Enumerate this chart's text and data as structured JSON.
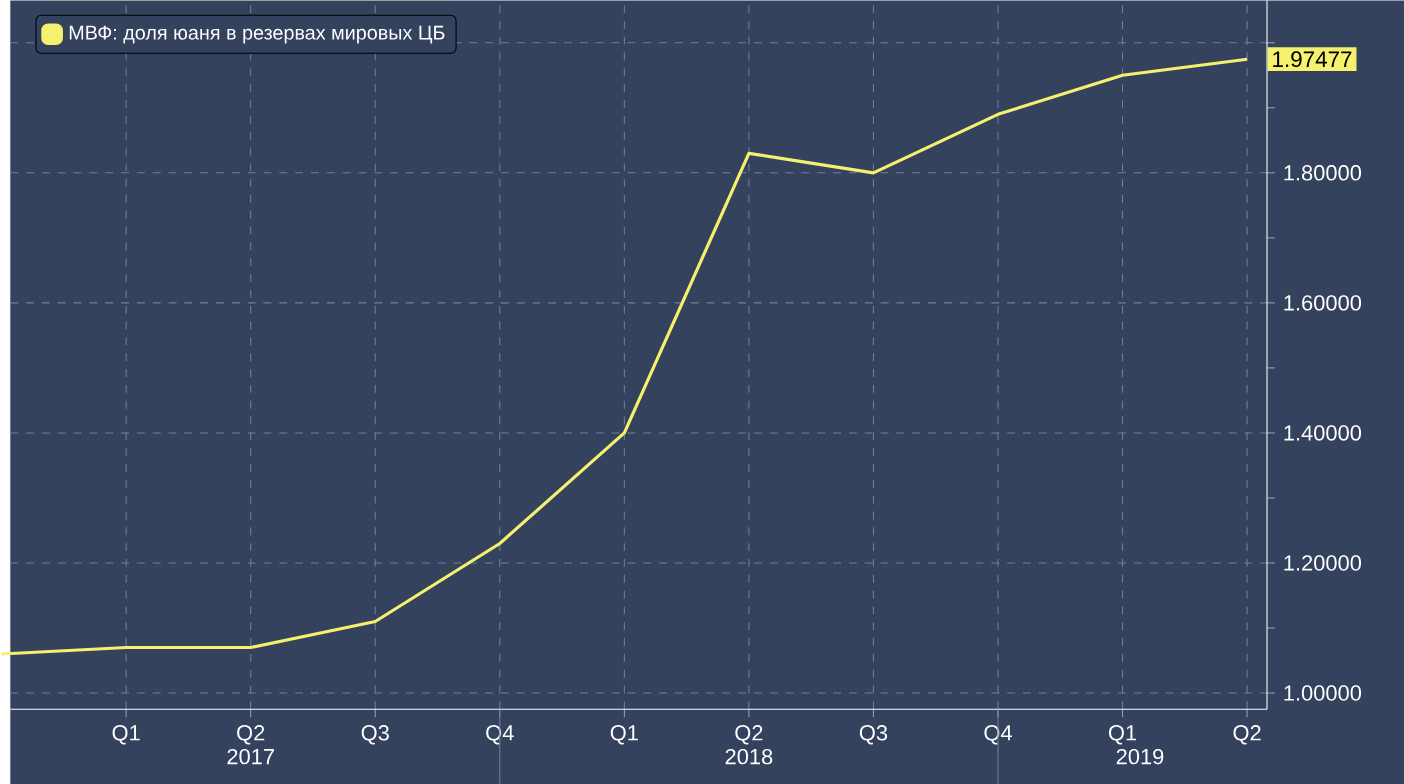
{
  "chart_data": {
    "type": "line",
    "categories": [
      null,
      "Q1",
      "Q2",
      "Q3",
      "Q4",
      "Q1",
      "Q2",
      "Q3",
      "Q4",
      "Q1",
      "Q2"
    ],
    "series": [
      {
        "name": "МВФ: доля юаня в резервах мировых ЦБ",
        "color": "#f5f06e",
        "values": [
          1.06,
          1.07,
          1.07,
          1.11,
          1.23,
          1.4,
          1.83,
          1.8,
          1.89,
          1.95,
          1.97477
        ],
        "value_labels": [
          null,
          null,
          null,
          null,
          null,
          null,
          null,
          null,
          null,
          null,
          "1.97477"
        ]
      }
    ],
    "ylim": [
      0.975,
      2.065
    ],
    "yticks": [
      {
        "value": 1.0,
        "label": "1.00000"
      },
      {
        "value": 1.2,
        "label": "1.20000"
      },
      {
        "value": 1.4,
        "label": "1.40000"
      },
      {
        "value": 1.6,
        "label": "1.60000"
      },
      {
        "value": 1.8,
        "label": "1.80000"
      },
      {
        "value": 2.0,
        "label": null
      }
    ],
    "annotations": [
      "2017",
      "2018",
      "2019"
    ],
    "grid": true,
    "legend": "top left",
    "marker": "none",
    "line_style": "solid"
  }
}
